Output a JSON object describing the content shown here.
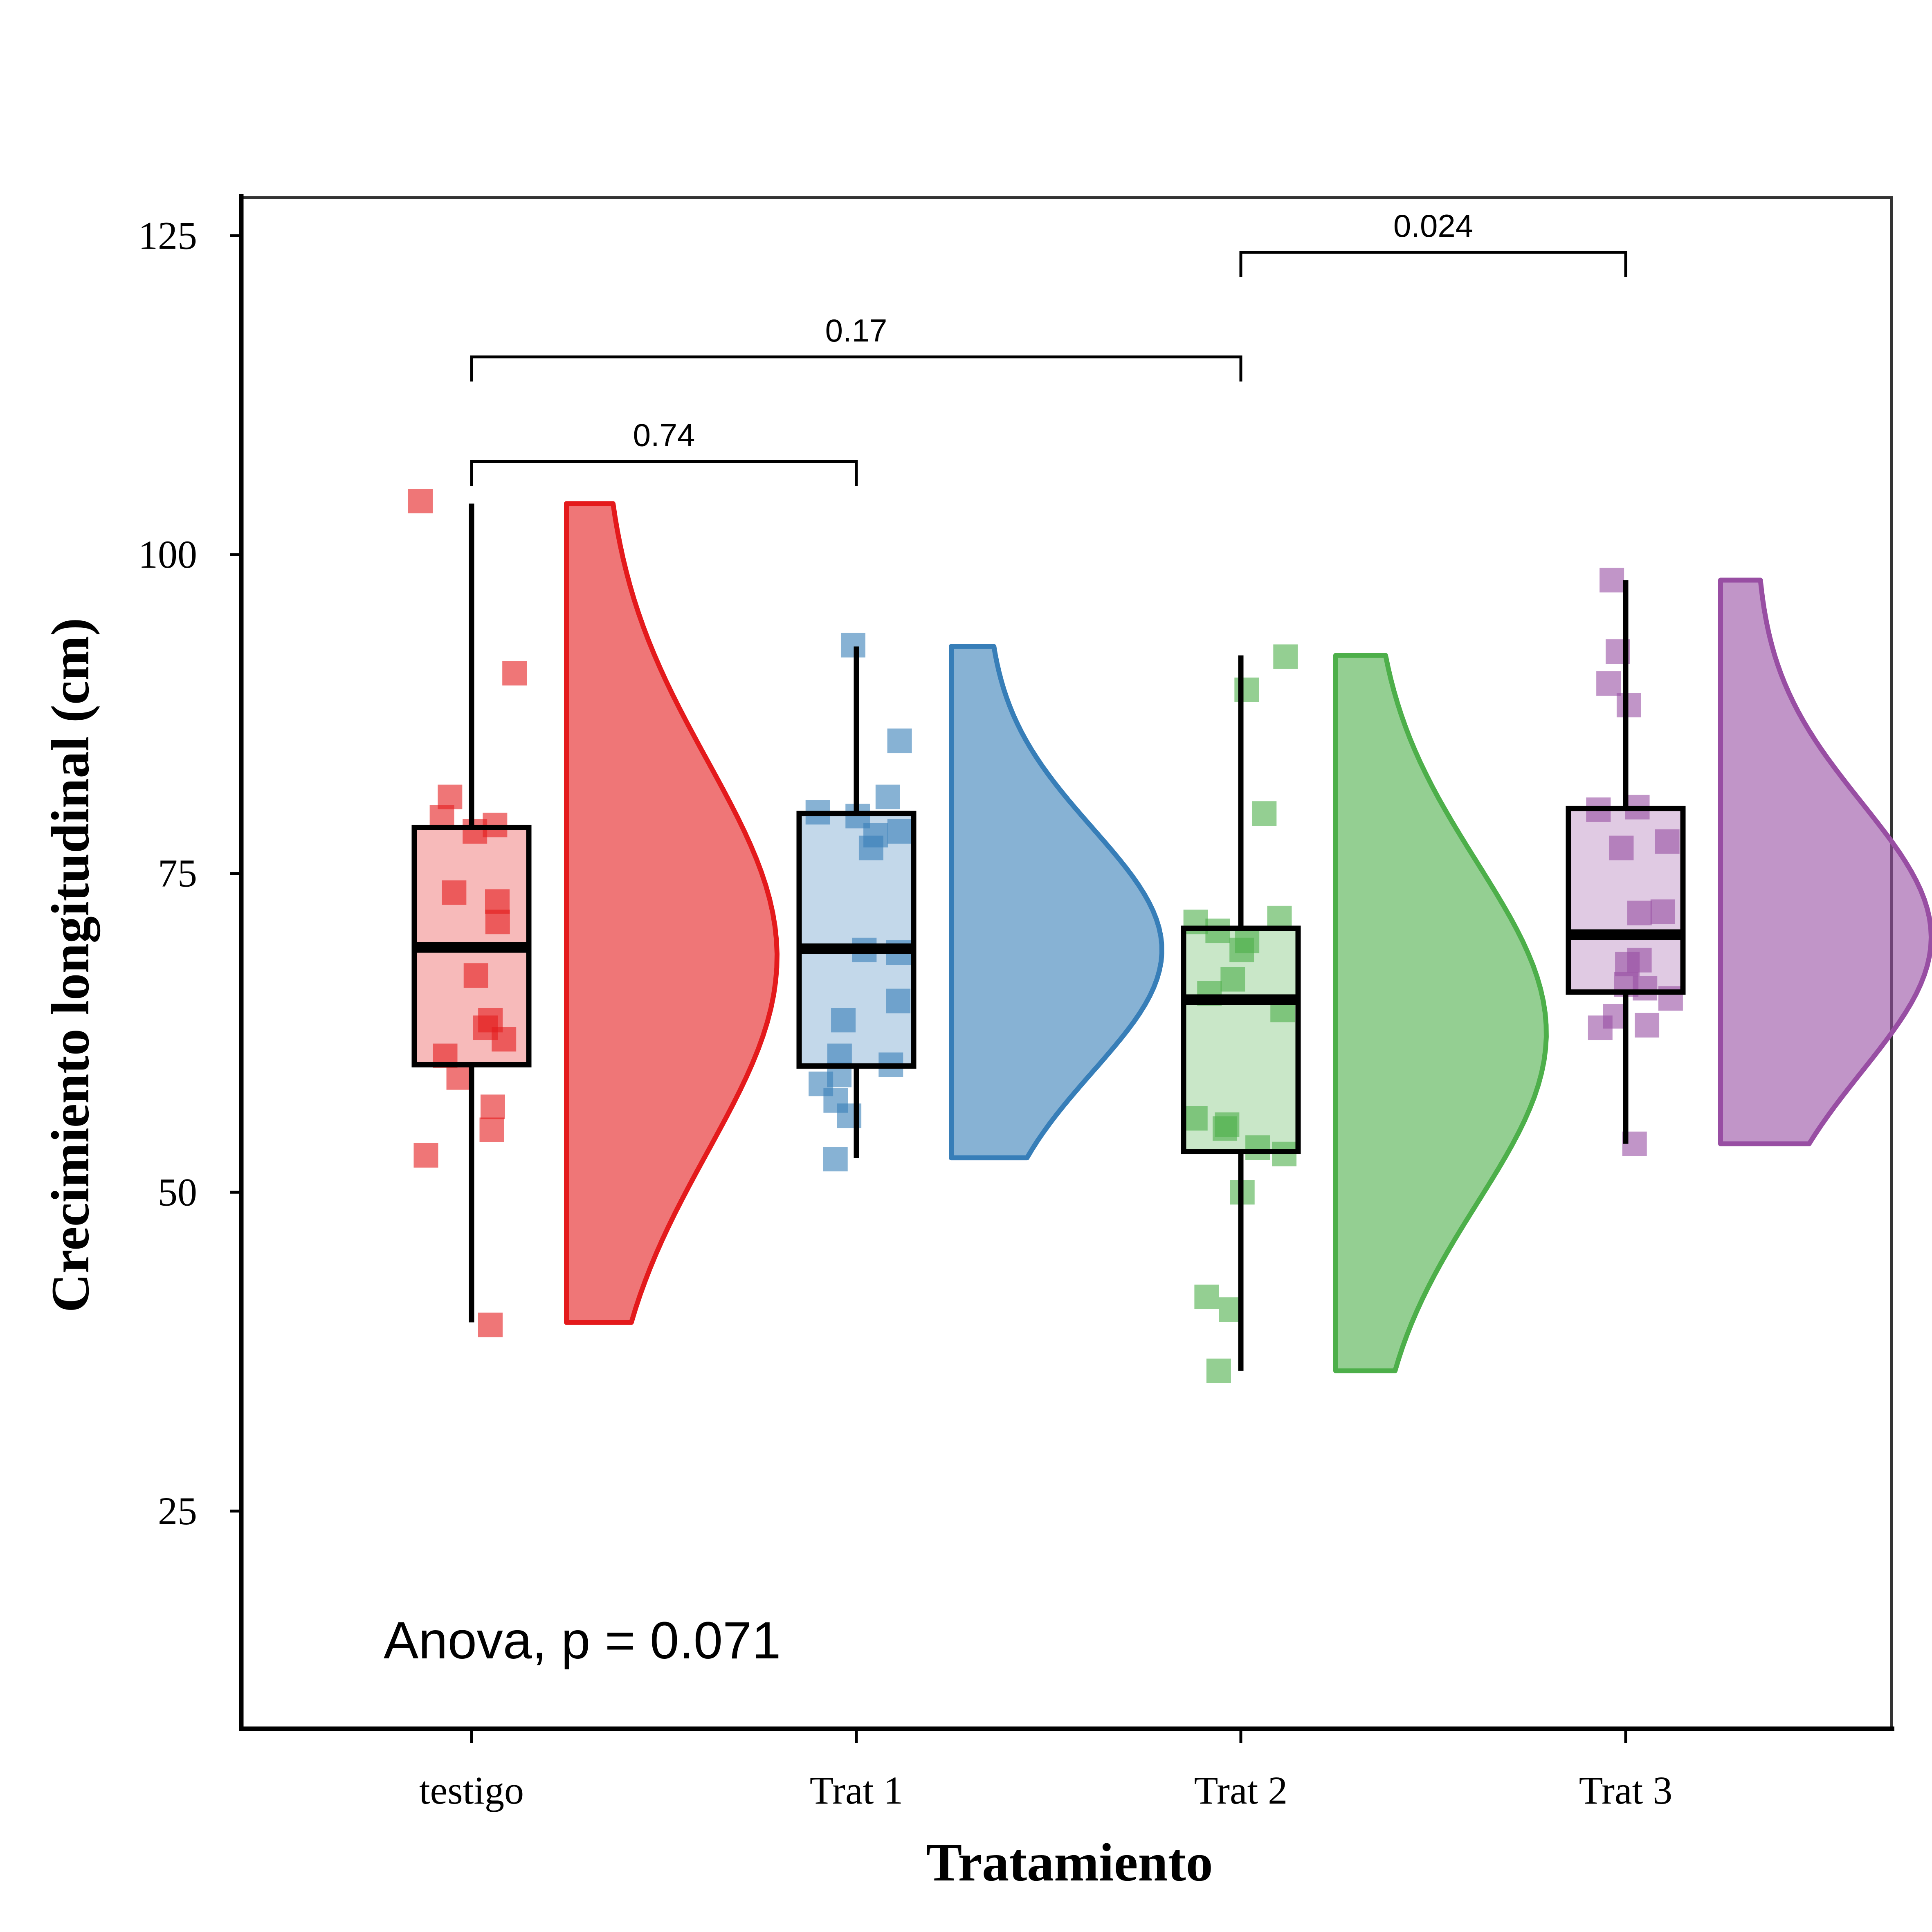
{
  "chart_data": {
    "type": "raincloud",
    "xlabel": "Tratamiento",
    "ylabel": "Crecimiento longitudinal (cm)",
    "ylim": [
      8,
      128
    ],
    "y_ticks": [
      25,
      50,
      75,
      100,
      125
    ],
    "categories": [
      "testigo",
      "Trat 1",
      "Trat 2",
      "Trat 3"
    ],
    "colors": [
      "#E41A1C",
      "#377EB8",
      "#4DAF4A",
      "#984EA3"
    ],
    "box": [
      {
        "category": "testigo",
        "min": 39.8,
        "q1": 60.0,
        "median": 69.2,
        "q3": 78.6,
        "max": 104.0
      },
      {
        "category": "Trat 1",
        "min": 52.7,
        "q1": 59.9,
        "median": 69.1,
        "q3": 79.7,
        "max": 92.8
      },
      {
        "category": "Trat 2",
        "min": 36.0,
        "q1": 53.2,
        "median": 65.1,
        "q3": 70.7,
        "max": 92.1
      },
      {
        "category": "Trat 3",
        "min": 53.8,
        "q1": 65.7,
        "median": 70.2,
        "q3": 80.1,
        "max": 98.0
      }
    ],
    "density_peak": [
      68.5,
      69.0,
      62.5,
      70.0
    ],
    "points": [
      [
        104.2,
        90.7,
        81.0,
        79.4,
        78.8,
        78.3,
        73.5,
        72.8,
        71.2,
        67.0,
        63.5,
        62.9,
        62.0,
        60.7,
        59.0,
        56.7,
        54.9,
        52.9,
        39.6
      ],
      [
        92.9,
        85.4,
        81.0,
        79.8,
        79.5,
        78.3,
        78.0,
        77.0,
        69.0,
        68.8,
        65.0,
        63.5,
        60.7,
        60.0,
        59.2,
        58.5,
        57.2,
        56.0,
        52.6
      ],
      [
        92.0,
        89.4,
        79.7,
        71.5,
        71.2,
        70.5,
        69.7,
        69.0,
        66.7,
        65.6,
        64.3,
        55.8,
        55.3,
        55.0,
        53.5,
        53.0,
        50.0,
        41.8,
        40.8,
        36.0
      ],
      [
        98.0,
        92.4,
        89.9,
        88.2,
        80.2,
        80.0,
        77.5,
        77.0,
        72.0,
        71.9,
        68.2,
        67.9,
        66.3,
        66.0,
        65.2,
        63.8,
        63.1,
        62.9,
        53.8
      ]
    ],
    "comparisons": [
      {
        "from": "testigo",
        "to": "Trat 1",
        "p": "0.74"
      },
      {
        "from": "testigo",
        "to": "Trat 2",
        "p": "0.17"
      },
      {
        "from": "Trat 2",
        "to": "Trat 3",
        "p": "0.024"
      }
    ],
    "annotation": "Anova, p = 0.071",
    "grid": false
  }
}
